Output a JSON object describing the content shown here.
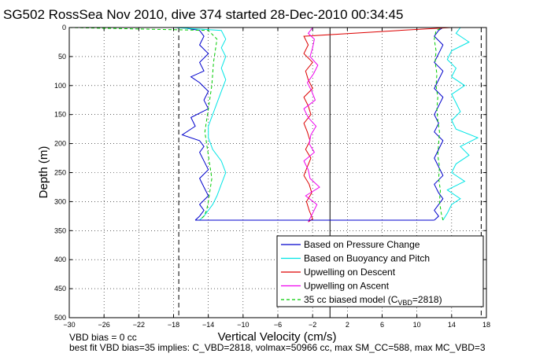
{
  "chart_data": {
    "type": "line",
    "title": "SG502 RossSea Nov 2010, dive 374 started 28-Dec-2010 00:34:45",
    "xlabel": "Vertical Velocity (cm/s)",
    "ylabel": "Depth (m)",
    "xlim": [
      -30,
      18
    ],
    "ylim": [
      0,
      500
    ],
    "y_reversed": true,
    "grid": true,
    "grid_style": "dotted",
    "legend_position": "bottom-right",
    "xticks": [
      "−30",
      "−26",
      "−22",
      "−18",
      "−14",
      "−10",
      "−6",
      "−2",
      "2",
      "6",
      "10",
      "14",
      "18"
    ],
    "xtick_values": [
      -30,
      -26,
      -22,
      -18,
      -14,
      -10,
      -6,
      -2,
      2,
      6,
      10,
      14,
      18
    ],
    "yticks": [
      "0",
      "50",
      "100",
      "150",
      "200",
      "250",
      "300",
      "350",
      "400",
      "450",
      "500"
    ],
    "ytick_values": [
      0,
      50,
      100,
      150,
      200,
      250,
      300,
      350,
      400,
      450,
      500
    ],
    "reference_lines": {
      "dashed_vertical": [
        -17.4,
        17.4
      ],
      "solid_vertical": [
        0
      ]
    },
    "series": [
      {
        "name": "Based on Pressure Change",
        "color": "#0000cc",
        "descent": {
          "depth": [
            0,
            5,
            15,
            30,
            45,
            60,
            75,
            85,
            95,
            110,
            125,
            140,
            155,
            170,
            185,
            195,
            205,
            215,
            230,
            245,
            260,
            275,
            290,
            305,
            315,
            325,
            332
          ],
          "velocity": [
            -17,
            -15,
            -14.5,
            -15,
            -14,
            -15,
            -14.5,
            -16,
            -15,
            -14,
            -14.5,
            -14,
            -16,
            -15.5,
            -17,
            -15,
            -14.5,
            -15,
            -14.5,
            -14,
            -15,
            -14.5,
            -14,
            -15,
            -14.5,
            -15,
            -15.5
          ]
        },
        "ascent": {
          "depth": [
            332,
            325,
            315,
            305,
            295,
            285,
            270,
            255,
            240,
            225,
            210,
            195,
            180,
            165,
            150,
            135,
            120,
            105,
            90,
            75,
            60,
            45,
            30,
            15,
            5,
            0
          ],
          "velocity": [
            12,
            12.5,
            12,
            12.5,
            13,
            12.5,
            12,
            13,
            12.5,
            12,
            12.5,
            13,
            12,
            12.5,
            12,
            12.5,
            13,
            12,
            12.5,
            13,
            12,
            12.5,
            13,
            12,
            12.5,
            13
          ]
        }
      },
      {
        "name": "Based on Buoyancy and Pitch",
        "color": "#00e5e5",
        "descent": {
          "depth": [
            0,
            5,
            20,
            35,
            50,
            70,
            90,
            110,
            130,
            150,
            170,
            190,
            210,
            230,
            250,
            270,
            290,
            305,
            315,
            325,
            332
          ],
          "velocity": [
            -18,
            -12.5,
            -12,
            -12.5,
            -12,
            -12.5,
            -12,
            -12.5,
            -13,
            -13.5,
            -14,
            -14,
            -13.5,
            -12.5,
            -12,
            -12.5,
            -13,
            -13.5,
            -14,
            -14.5,
            -15
          ]
        },
        "ascent": {
          "depth": [
            332,
            320,
            305,
            295,
            280,
            265,
            250,
            235,
            220,
            205,
            190,
            175,
            160,
            145,
            130,
            115,
            100,
            85,
            70,
            55,
            40,
            25,
            10,
            0
          ],
          "velocity": [
            13,
            13.5,
            14,
            15,
            13.5,
            15.5,
            14,
            14.5,
            16,
            15,
            17,
            14.5,
            14,
            15,
            14.5,
            14,
            15.5,
            14,
            14.5,
            13.5,
            14,
            16,
            14.5,
            15
          ]
        }
      },
      {
        "name": "Upwelling on Descent",
        "color": "#dd0000",
        "descent": {
          "depth": [
            0,
            5,
            15,
            30,
            45,
            60,
            75,
            90,
            105,
            120,
            135,
            150,
            165,
            180,
            195,
            210,
            225,
            240,
            255,
            270,
            285,
            300,
            315,
            330,
            335
          ],
          "velocity": [
            14,
            8,
            -3,
            -2.5,
            -3,
            -2,
            -2.8,
            -2.5,
            -2,
            -3,
            -2.5,
            -2.2,
            -3,
            -2.6,
            -2.3,
            -2.8,
            -2.2,
            -2.6,
            -3,
            -2.4,
            -2.1,
            -2.7,
            -2.4,
            -2,
            -2.5
          ]
        }
      },
      {
        "name": "Upwelling on Ascent",
        "color": "#ee00ee",
        "ascent": {
          "depth": [
            335,
            320,
            305,
            290,
            275,
            260,
            245,
            230,
            215,
            200,
            185,
            170,
            155,
            140,
            125,
            110,
            95,
            80,
            65,
            50,
            35,
            20,
            10,
            0
          ],
          "velocity": [
            -2.5,
            -2,
            -1.5,
            -2.8,
            -1.2,
            -2.3,
            -2.5,
            -3,
            -1.8,
            -2.4,
            -2.2,
            -1.6,
            -2.5,
            -3,
            -1.7,
            -2.1,
            -2.6,
            -1.9,
            -1.4,
            -2.3,
            -2,
            -1.8,
            -2.5,
            -2
          ]
        }
      },
      {
        "name": "35 cc biased model (C_VBD=2818)",
        "color": "#00cc00",
        "dashed": true,
        "descent": {
          "depth": [
            0,
            5,
            20,
            40,
            60,
            80,
            100,
            120,
            140,
            160,
            180,
            200,
            220,
            240,
            260,
            280,
            300,
            315,
            325,
            332
          ],
          "velocity": [
            -30,
            -14,
            -13,
            -13.2,
            -13.4,
            -13.5,
            -13.6,
            -13.8,
            -14,
            -14.2,
            -14.4,
            -14.2,
            -14,
            -13.8,
            -13.6,
            -13.8,
            -14,
            -14.2,
            -14.5,
            -15
          ]
        },
        "ascent": {
          "depth": [
            332,
            320,
            300,
            280,
            260,
            240,
            220,
            200,
            180,
            160,
            140,
            120,
            100,
            80,
            60,
            40,
            20,
            5,
            0
          ],
          "velocity": [
            13,
            12.8,
            12.6,
            12.7,
            12.5,
            12.6,
            12.4,
            12.5,
            12.6,
            12.4,
            12.3,
            12.4,
            12.2,
            12.3,
            12.1,
            12.2,
            12,
            12.2,
            13
          ]
        }
      }
    ],
    "legend": [
      {
        "label": "Based on Pressure Change",
        "color": "#0000cc",
        "style": "solid"
      },
      {
        "label": "Based on Buoyancy and Pitch",
        "color": "#00e5e5",
        "style": "solid"
      },
      {
        "label": "Upwelling on Descent",
        "color": "#dd0000",
        "style": "solid"
      },
      {
        "label": "Upwelling on Ascent",
        "color": "#ee00ee",
        "style": "solid"
      },
      {
        "label_main": "35 cc biased model (C",
        "label_sub": "VBD",
        "label_end": "=2818)",
        "color": "#00cc00",
        "style": "dashed"
      }
    ]
  },
  "footer": {
    "line1": "VBD bias = 0 cc",
    "line2": "best fit VBD bias=35 implies: C_VBD=2818, volmax=50966 cc, max SM_CC=588, max MC_VBD=3"
  }
}
